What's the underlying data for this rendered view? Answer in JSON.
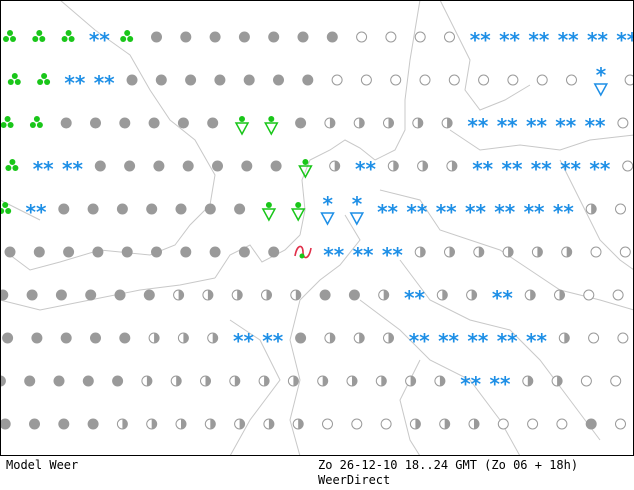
{
  "footer": {
    "left_label": "Model Weer",
    "timestamp": "Zo 26-12-10 18..24 GMT (Zo 06 + 18h)",
    "source": "WeerDirect"
  },
  "colors": {
    "background": "#ffffff",
    "coastline": "#c8c8c8",
    "cloud": "#9a9a9a",
    "snow": "#1e8fe6",
    "rain_showers": "#19c619",
    "sleet_marker": "#e0304a"
  },
  "legend_symbols": {
    "overcast": "filled-grey-circle",
    "partly_cloudy": "half-circle",
    "clear": "open-circle",
    "snow": "blue-double-asterisk",
    "snow_shower": "blue-asterisk-triangle",
    "rain_shower": "green-dot-triangle",
    "drizzle": "green-dots",
    "freezing": "red-wave"
  },
  "grid": {
    "rows": [
      {
        "symbols": [
          "drizzle",
          "drizzle",
          "drizzle",
          "snow",
          "drizzle",
          "overcast",
          "overcast",
          "overcast",
          "overcast",
          "overcast",
          "overcast",
          "overcast",
          "clear",
          "clear",
          "clear",
          "clear",
          "snow",
          "snow",
          "snow",
          "snow",
          "snow",
          "snow"
        ]
      },
      {
        "symbols": [
          "drizzle",
          "drizzle",
          "snow",
          "snow",
          "overcast",
          "overcast",
          "overcast",
          "overcast",
          "overcast",
          "overcast",
          "overcast",
          "clear",
          "clear",
          "clear",
          "clear",
          "clear",
          "clear",
          "clear",
          "clear",
          "clear",
          "snow_shower",
          "clear"
        ]
      },
      {
        "symbols": [
          "drizzle",
          "drizzle",
          "overcast",
          "overcast",
          "overcast",
          "overcast",
          "overcast",
          "overcast",
          "rain_shower",
          "rain_shower",
          "overcast",
          "partly_cloudy",
          "partly_cloudy",
          "partly_cloudy",
          "partly_cloudy",
          "partly_cloudy",
          "snow",
          "snow",
          "snow",
          "snow",
          "snow",
          "clear"
        ]
      },
      {
        "symbols": [
          "drizzle",
          "snow",
          "snow",
          "overcast",
          "overcast",
          "overcast",
          "overcast",
          "overcast",
          "overcast",
          "overcast",
          "rain_shower",
          "partly_cloudy",
          "snow",
          "partly_cloudy",
          "partly_cloudy",
          "partly_cloudy",
          "snow",
          "snow",
          "snow",
          "snow",
          "snow",
          "clear"
        ]
      },
      {
        "symbols": [
          "drizzle",
          "snow",
          "overcast",
          "overcast",
          "overcast",
          "overcast",
          "overcast",
          "overcast",
          "overcast",
          "rain_shower",
          "rain_shower",
          "snow_shower",
          "snow_shower",
          "snow",
          "snow",
          "snow",
          "snow",
          "snow",
          "snow",
          "snow",
          "partly_cloudy",
          "clear"
        ]
      },
      {
        "symbols": [
          "overcast",
          "overcast",
          "overcast",
          "overcast",
          "overcast",
          "overcast",
          "overcast",
          "overcast",
          "overcast",
          "overcast",
          "freezing",
          "snow",
          "snow",
          "snow",
          "partly_cloudy",
          "partly_cloudy",
          "partly_cloudy",
          "partly_cloudy",
          "partly_cloudy",
          "partly_cloudy",
          "clear",
          "clear"
        ]
      },
      {
        "symbols": [
          "overcast",
          "overcast",
          "overcast",
          "overcast",
          "overcast",
          "overcast",
          "partly_cloudy",
          "partly_cloudy",
          "partly_cloudy",
          "partly_cloudy",
          "partly_cloudy",
          "overcast",
          "overcast",
          "partly_cloudy",
          "snow",
          "partly_cloudy",
          "partly_cloudy",
          "snow",
          "partly_cloudy",
          "partly_cloudy",
          "clear",
          "clear"
        ]
      },
      {
        "symbols": [
          "overcast",
          "overcast",
          "overcast",
          "overcast",
          "overcast",
          "partly_cloudy",
          "partly_cloudy",
          "partly_cloudy",
          "snow",
          "snow",
          "overcast",
          "partly_cloudy",
          "partly_cloudy",
          "partly_cloudy",
          "snow",
          "snow",
          "snow",
          "snow",
          "snow",
          "partly_cloudy",
          "clear",
          "clear"
        ]
      },
      {
        "symbols": [
          "overcast",
          "overcast",
          "overcast",
          "overcast",
          "overcast",
          "partly_cloudy",
          "partly_cloudy",
          "partly_cloudy",
          "partly_cloudy",
          "partly_cloudy",
          "partly_cloudy",
          "partly_cloudy",
          "partly_cloudy",
          "partly_cloudy",
          "partly_cloudy",
          "partly_cloudy",
          "snow",
          "snow",
          "partly_cloudy",
          "partly_cloudy",
          "clear",
          "clear"
        ]
      },
      {
        "symbols": [
          "overcast",
          "overcast",
          "overcast",
          "overcast",
          "partly_cloudy",
          "partly_cloudy",
          "partly_cloudy",
          "partly_cloudy",
          "partly_cloudy",
          "partly_cloudy",
          "partly_cloudy",
          "clear",
          "clear",
          "clear",
          "partly_cloudy",
          "partly_cloudy",
          "partly_cloudy",
          "clear",
          "clear",
          "clear",
          "overcast",
          "clear"
        ]
      }
    ]
  }
}
